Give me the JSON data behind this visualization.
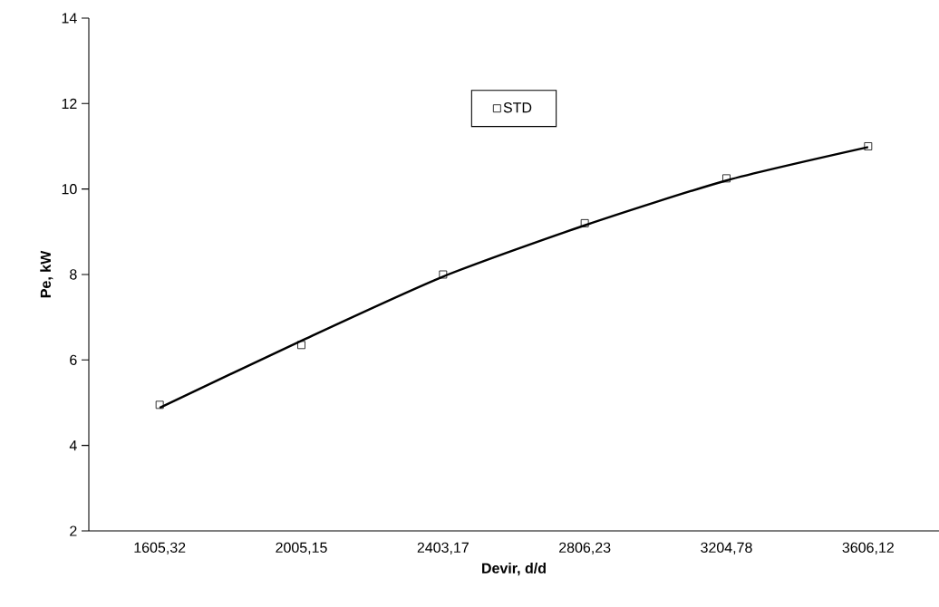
{
  "chart_data": {
    "type": "line",
    "xlabel": "Devir, d/d",
    "ylabel": "Pe, kW",
    "categories": [
      "1605,32",
      "2005,15",
      "2403,17",
      "2806,23",
      "3204,78",
      "3606,12"
    ],
    "series": [
      {
        "name": "STD",
        "type": "scatter",
        "marker": "square",
        "color": "#000000",
        "values": [
          4.95,
          6.35,
          8.0,
          9.2,
          10.25,
          11.0
        ]
      },
      {
        "color": "#000000",
        "values": [
          4.88,
          6.45,
          7.95,
          9.15,
          10.2,
          10.98
        ]
      }
    ],
    "ylim": [
      2,
      14
    ],
    "yticks": [
      2,
      4,
      6,
      8,
      10,
      12,
      14
    ],
    "legend": "top",
    "grid": false
  }
}
